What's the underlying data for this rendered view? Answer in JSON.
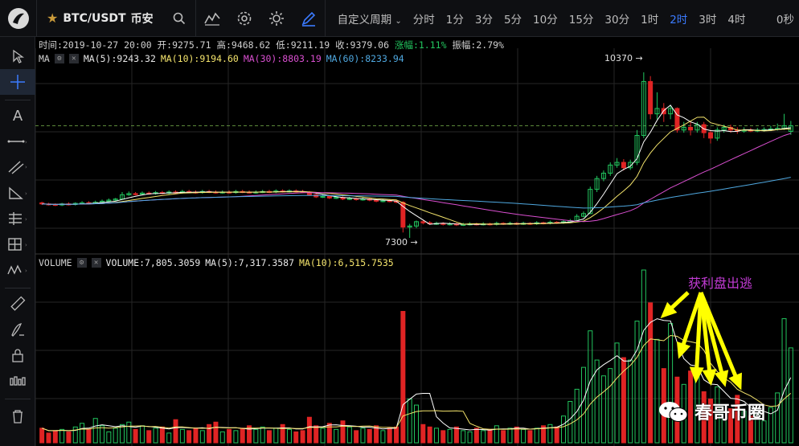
{
  "header": {
    "symbol": "BTC/USDT",
    "exchange": "币安",
    "periods": [
      "自定义周期",
      "分时",
      "1分",
      "3分",
      "5分",
      "10分",
      "15分",
      "30分",
      "1时",
      "2时",
      "3时",
      "4时"
    ],
    "active_period": "2时",
    "countdown": "0秒",
    "icons": [
      "logo-icon",
      "star-icon",
      "search-icon",
      "indicator-icon",
      "settings-icon",
      "theme-icon",
      "draw-icon",
      "chevron-down-icon"
    ]
  },
  "ohlc": {
    "time": "时间:2019-10-27 20:00",
    "open": "开:9275.71",
    "high": "高:9468.62",
    "low": "低:9211.19",
    "close": "收:9379.06",
    "change": "涨幅:1.11%",
    "amplitude": "振幅:2.79%"
  },
  "ma": {
    "label": "MA",
    "ma5": "MA(5):9243.32",
    "ma10": "MA(10):9194.60",
    "ma30": "MA(30):8803.19",
    "ma60": "MA(60):8233.94",
    "colors": {
      "ma5": "#ffffff",
      "ma10": "#f4e46c",
      "ma30": "#d94fd0",
      "ma60": "#4fa8e0"
    }
  },
  "price_labels": {
    "high": "10370",
    "low": "7300"
  },
  "volume": {
    "label": "VOLUME",
    "value": "VOLUME:7,805.3059",
    "ma5": "MA(5):7,317.3587",
    "ma10": "MA(10):6,515.7535"
  },
  "annotation": "获利盘出逃",
  "watermark": "春哥币圈",
  "colors": {
    "up": "#22c55e",
    "down": "#e02424",
    "background": "#000000",
    "grid": "#2a2a2a",
    "accent": "#3b7bff",
    "arrow": "#ffff00"
  },
  "chart_data": {
    "type": "candlestick",
    "y_high": 10370,
    "y_low": 7300,
    "last_close": 9379.06,
    "candles": [
      [
        7950,
        7930,
        7970,
        7910
      ],
      [
        7930,
        7920,
        7950,
        7900
      ],
      [
        7920,
        7910,
        7940,
        7890
      ],
      [
        7910,
        7930,
        7950,
        7890
      ],
      [
        7930,
        7920,
        7960,
        7900
      ],
      [
        7920,
        7940,
        7960,
        7900
      ],
      [
        7940,
        7950,
        7980,
        7920
      ],
      [
        7950,
        7940,
        7980,
        7920
      ],
      [
        7940,
        7960,
        7990,
        7930
      ],
      [
        7960,
        7980,
        8010,
        7940
      ],
      [
        7980,
        8000,
        8030,
        7960
      ],
      [
        8000,
        8020,
        8040,
        7980
      ],
      [
        8020,
        8100,
        8150,
        8010
      ],
      [
        8100,
        8120,
        8160,
        8080
      ],
      [
        8120,
        8110,
        8150,
        8090
      ],
      [
        8110,
        8130,
        8160,
        8090
      ],
      [
        8130,
        8120,
        8160,
        8100
      ],
      [
        8120,
        8140,
        8170,
        8100
      ],
      [
        8140,
        8130,
        8170,
        8110
      ],
      [
        8130,
        8150,
        8180,
        8110
      ],
      [
        8150,
        8140,
        8180,
        8120
      ],
      [
        8140,
        8160,
        8190,
        8120
      ],
      [
        8160,
        8150,
        8190,
        8130
      ],
      [
        8150,
        8140,
        8180,
        8120
      ],
      [
        8140,
        8160,
        8190,
        8120
      ],
      [
        8160,
        8150,
        8190,
        8130
      ],
      [
        8150,
        8140,
        8180,
        8120
      ],
      [
        8140,
        8150,
        8180,
        8120
      ],
      [
        8150,
        8140,
        8180,
        8120
      ],
      [
        8140,
        8160,
        8190,
        8120
      ],
      [
        8160,
        8150,
        8190,
        8130
      ],
      [
        8150,
        8140,
        8180,
        8120
      ],
      [
        8140,
        8150,
        8180,
        8120
      ],
      [
        8150,
        8160,
        8190,
        8130
      ],
      [
        8160,
        8150,
        8190,
        8130
      ],
      [
        8150,
        8170,
        8200,
        8130
      ],
      [
        8170,
        8160,
        8200,
        8140
      ],
      [
        8160,
        8170,
        8200,
        8140
      ],
      [
        8170,
        8160,
        8200,
        8140
      ],
      [
        8160,
        8150,
        8190,
        8130
      ],
      [
        8150,
        8100,
        8170,
        8080
      ],
      [
        8100,
        8060,
        8120,
        8040
      ],
      [
        8060,
        8070,
        8100,
        8040
      ],
      [
        8070,
        8040,
        8090,
        8020
      ],
      [
        8040,
        8050,
        8080,
        8020
      ],
      [
        8050,
        8020,
        8070,
        8000
      ],
      [
        8020,
        8030,
        8060,
        8000
      ],
      [
        8030,
        8010,
        8050,
        7990
      ],
      [
        8010,
        8020,
        8050,
        7990
      ],
      [
        8020,
        8000,
        8040,
        7980
      ],
      [
        8000,
        7980,
        8020,
        7960
      ],
      [
        7980,
        7990,
        8020,
        7960
      ],
      [
        7990,
        7980,
        8010,
        7960
      ],
      [
        7980,
        7960,
        8000,
        7940
      ],
      [
        7960,
        7500,
        7980,
        7400
      ],
      [
        7500,
        7520,
        7560,
        7300
      ],
      [
        7520,
        7600,
        7620,
        7480
      ],
      [
        7600,
        7580,
        7630,
        7550
      ],
      [
        7580,
        7560,
        7610,
        7540
      ],
      [
        7560,
        7570,
        7600,
        7540
      ],
      [
        7570,
        7550,
        7590,
        7530
      ],
      [
        7550,
        7560,
        7590,
        7530
      ],
      [
        7560,
        7540,
        7580,
        7520
      ],
      [
        7540,
        7550,
        7580,
        7520
      ],
      [
        7550,
        7560,
        7590,
        7530
      ],
      [
        7560,
        7550,
        7580,
        7530
      ],
      [
        7550,
        7560,
        7590,
        7530
      ],
      [
        7560,
        7550,
        7580,
        7530
      ],
      [
        7550,
        7570,
        7600,
        7530
      ],
      [
        7570,
        7560,
        7590,
        7540
      ],
      [
        7560,
        7570,
        7600,
        7540
      ],
      [
        7570,
        7560,
        7590,
        7540
      ],
      [
        7560,
        7570,
        7600,
        7540
      ],
      [
        7570,
        7560,
        7590,
        7540
      ],
      [
        7560,
        7580,
        7610,
        7540
      ],
      [
        7580,
        7570,
        7600,
        7550
      ],
      [
        7570,
        7590,
        7620,
        7550
      ],
      [
        7590,
        7580,
        7610,
        7560
      ],
      [
        7580,
        7600,
        7630,
        7560
      ],
      [
        7600,
        7620,
        7650,
        7580
      ],
      [
        7620,
        7700,
        7740,
        7610
      ],
      [
        7700,
        7750,
        7790,
        7680
      ],
      [
        7750,
        8200,
        8250,
        7740
      ],
      [
        8200,
        8400,
        8450,
        8150
      ],
      [
        8400,
        8500,
        8550,
        8350
      ],
      [
        8500,
        8650,
        8700,
        8450
      ],
      [
        8650,
        8700,
        8780,
        8600
      ],
      [
        8700,
        8600,
        8760,
        8550
      ],
      [
        8600,
        8700,
        8750,
        8560
      ],
      [
        8700,
        9200,
        9300,
        8650
      ],
      [
        9200,
        10200,
        10370,
        9150
      ],
      [
        10200,
        9600,
        10300,
        9500
      ],
      [
        9600,
        9700,
        10000,
        9500
      ],
      [
        9700,
        9600,
        9800,
        9450
      ],
      [
        9600,
        9700,
        9750,
        9500
      ],
      [
        9700,
        9300,
        9720,
        9250
      ],
      [
        9300,
        9350,
        9450,
        9250
      ],
      [
        9350,
        9300,
        9450,
        9200
      ],
      [
        9300,
        9400,
        9450,
        9250
      ],
      [
        9400,
        9250,
        9450,
        9150
      ],
      [
        9250,
        9150,
        9300,
        9050
      ],
      [
        9150,
        9300,
        9350,
        9100
      ],
      [
        9300,
        9350,
        9400,
        9250
      ],
      [
        9350,
        9300,
        9400,
        9250
      ],
      [
        9300,
        9280,
        9350,
        9230
      ],
      [
        9280,
        9300,
        9350,
        9250
      ],
      [
        9300,
        9290,
        9340,
        9260
      ],
      [
        9290,
        9300,
        9340,
        9260
      ],
      [
        9300,
        9310,
        9350,
        9270
      ],
      [
        9310,
        9320,
        9380,
        9280
      ],
      [
        9320,
        9330,
        9420,
        9290
      ],
      [
        9330,
        9380,
        9600,
        9300
      ],
      [
        9275.71,
        9379.06,
        9468.62,
        9211.19
      ]
    ],
    "volumes": [
      1.2,
      0.8,
      1.0,
      1.1,
      0.9,
      1.3,
      1.6,
      1.1,
      2.0,
      1.4,
      0.9,
      1.2,
      1.5,
      1.7,
      1.1,
      1.4,
      1.0,
      1.2,
      1.3,
      0.8,
      1.9,
      1.1,
      1.0,
      1.2,
      1.0,
      1.5,
      1.7,
      0.9,
      1.1,
      1.0,
      1.2,
      1.4,
      1.1,
      1.3,
      1.0,
      1.2,
      1.5,
      1.1,
      0.9,
      1.0,
      2.1,
      1.4,
      1.2,
      1.6,
      1.1,
      1.8,
      1.3,
      1.0,
      1.2,
      1.1,
      1.4,
      1.0,
      1.2,
      1.3,
      10.8,
      3.6,
      3.1,
      1.5,
      1.3,
      1.2,
      1.0,
      1.1,
      1.3,
      1.0,
      0.9,
      1.2,
      1.0,
      1.1,
      1.4,
      1.0,
      1.2,
      1.3,
      1.1,
      1.0,
      1.2,
      1.4,
      1.5,
      1.3,
      2.2,
      3.4,
      4.4,
      6.2,
      9.2,
      6.8,
      5.5,
      6.1,
      8.2,
      7.0,
      6.8,
      10.0,
      14.2,
      11.5,
      8.5,
      6.1,
      9.8,
      5.4,
      4.8,
      5.9,
      5.6,
      4.2,
      3.6,
      4.6,
      3.1,
      2.8,
      3.9,
      2.6,
      2.2,
      2.4,
      1.8,
      2.9,
      4.1,
      10.2,
      7.8
    ],
    "ma_lines": {
      "ma5": [
        7940,
        7935,
        7930,
        7925,
        7930,
        7940,
        7950,
        7980,
        8010,
        8050,
        8080,
        8100,
        8115,
        8125,
        8130,
        8135,
        8140,
        8140,
        8145,
        8145,
        8150,
        8150,
        8150,
        8150,
        8150,
        8148,
        8146,
        8145,
        8146,
        8148,
        8150,
        8152,
        8154,
        8156,
        8158,
        8160,
        8162,
        8160,
        8150,
        8120,
        8090,
        8060,
        8050,
        8040,
        8030,
        8020,
        8010,
        8000,
        7990,
        7980,
        7960,
        7800,
        7700,
        7620,
        7580,
        7570,
        7560,
        7555,
        7552,
        7550,
        7552,
        7555,
        7555,
        7556,
        7556,
        7557,
        7558,
        7560,
        7562,
        7563,
        7565,
        7566,
        7570,
        7575,
        7580,
        7600,
        7650,
        7800,
        8000,
        8250,
        8450,
        8600,
        8650,
        8700,
        8900,
        9300,
        9550,
        9700,
        9800,
        9700,
        9550,
        9450,
        9380,
        9320,
        9280,
        9270,
        9280,
        9290,
        9300,
        9295,
        9300,
        9310,
        9320,
        9330,
        9350,
        9379
      ],
      "ma10": [
        7950,
        7945,
        7940,
        7935,
        7935,
        7938,
        7942,
        7950,
        7965,
        7985,
        8010,
        8035,
        8060,
        8080,
        8095,
        8105,
        8112,
        8118,
        8122,
        8125,
        8128,
        8130,
        8132,
        8134,
        8136,
        8138,
        8140,
        8142,
        8144,
        8145,
        8146,
        8147,
        8148,
        8149,
        8150,
        8150,
        8148,
        8140,
        8120,
        8100,
        8080,
        8060,
        8040,
        8020,
        8000,
        7980,
        7950,
        7900,
        7850,
        7780,
        7720,
        7680,
        7640,
        7610,
        7590,
        7575,
        7565,
        7560,
        7556,
        7554,
        7554,
        7555,
        7556,
        7557,
        7558,
        7560,
        7562,
        7565,
        7570,
        7585,
        7620,
        7700,
        7800,
        7950,
        8100,
        8300,
        8500,
        8700,
        8900,
        9100,
        9250,
        9350,
        9420,
        9450,
        9420,
        9380,
        9340,
        9310,
        9290,
        9280,
        9280,
        9285,
        9290,
        9295,
        9300,
        9305,
        9310,
        9320,
        9340,
        9360,
        9380,
        9394
      ]
    }
  }
}
